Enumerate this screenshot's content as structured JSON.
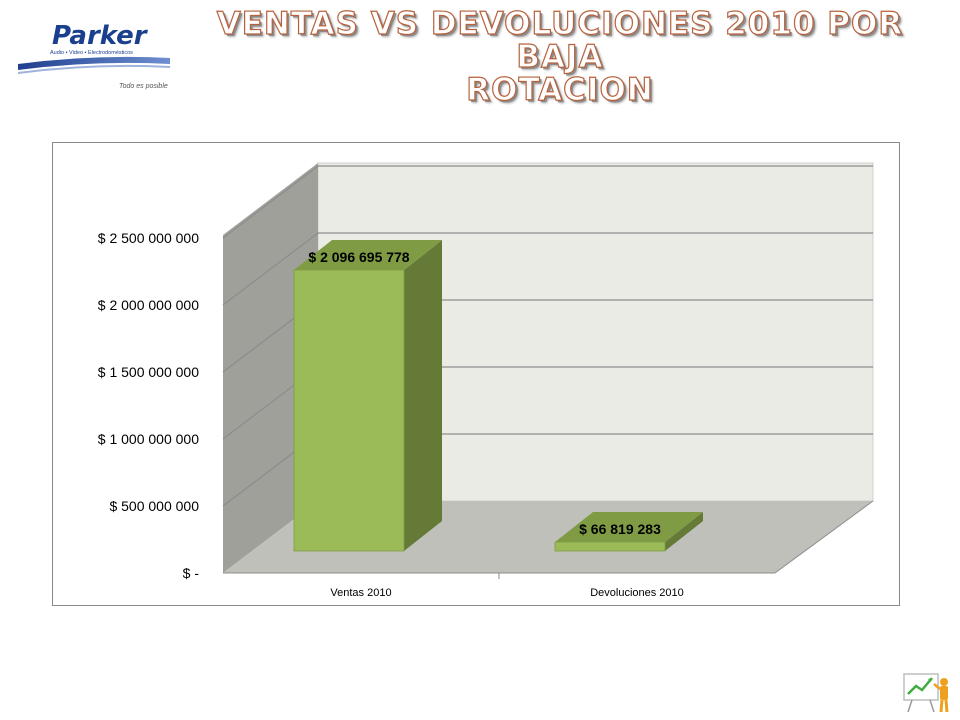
{
  "slide": {
    "title_line1": "VENTAS VS DEVOLUCIONES  2010  POR BAJA",
    "title_line2": "ROTACION"
  },
  "logo": {
    "brand": "Parker",
    "tagline": "Audio • Video • Electrodomésticos",
    "slogan": "Todo es posible"
  },
  "chart_data": {
    "type": "bar",
    "title": "",
    "categories": [
      "Ventas 2010",
      "Devoluciones 2010"
    ],
    "values": [
      2096695778,
      66819283
    ],
    "data_labels": [
      "$ 2 096 695 778",
      "$ 66 819 283"
    ],
    "ylim": [
      0,
      2500000000
    ],
    "y_ticks": [
      0,
      500000000,
      1000000000,
      1500000000,
      2000000000,
      2500000000
    ],
    "y_tick_labels": [
      "$ -",
      "$ 500 000 000",
      "$ 1 000 000 000",
      "$ 1 500 000 000",
      "$ 2 000 000 000",
      "$ 2 500 000 000"
    ],
    "grid": true,
    "legend": "none",
    "colors": {
      "bar_front": "#9bbb59",
      "bar_side": "#647a36",
      "bar_top": "#7f9c45",
      "back_wall": "#ebebe6",
      "side_wall": "#9fa09a",
      "floor": "#bfc0ba",
      "grid": "#8c8c8c"
    }
  }
}
